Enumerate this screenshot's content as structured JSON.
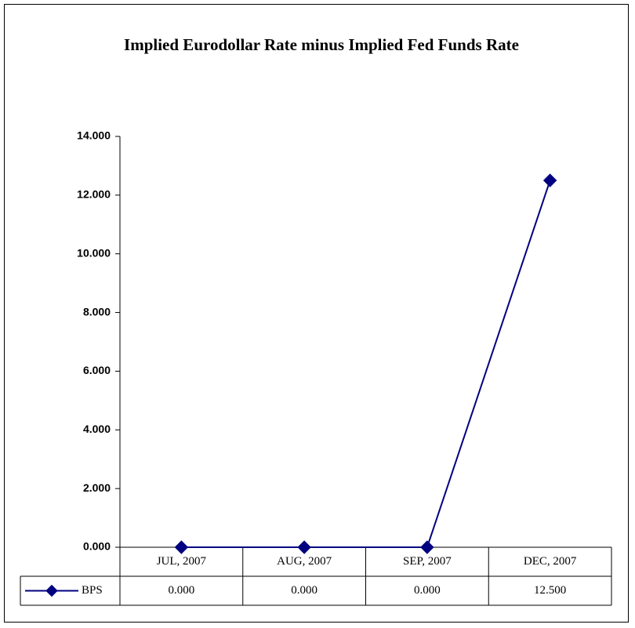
{
  "chart_data": {
    "type": "line",
    "title": "Implied Eurodollar Rate minus Implied Fed Funds Rate",
    "categories": [
      "JUL, 2007",
      "AUG, 2007",
      "SEP, 2007",
      "DEC, 2007"
    ],
    "series": [
      {
        "name": "BPS",
        "color": "#000080",
        "marker": "diamond",
        "values": [
          0,
          0,
          0,
          12.5
        ],
        "value_labels": [
          "0.000",
          "0.000",
          "0.000",
          "12.500"
        ]
      }
    ],
    "ylim": [
      0,
      14
    ],
    "yticks": [
      {
        "value": 0,
        "label": "0.000"
      },
      {
        "value": 2,
        "label": "2.000"
      },
      {
        "value": 4,
        "label": "4.000"
      },
      {
        "value": 6,
        "label": "6.000"
      },
      {
        "value": 8,
        "label": "8.000"
      },
      {
        "value": 10,
        "label": "10.000"
      },
      {
        "value": 12,
        "label": "12.000"
      },
      {
        "value": 14,
        "label": "14.000"
      }
    ],
    "data_table": true
  }
}
